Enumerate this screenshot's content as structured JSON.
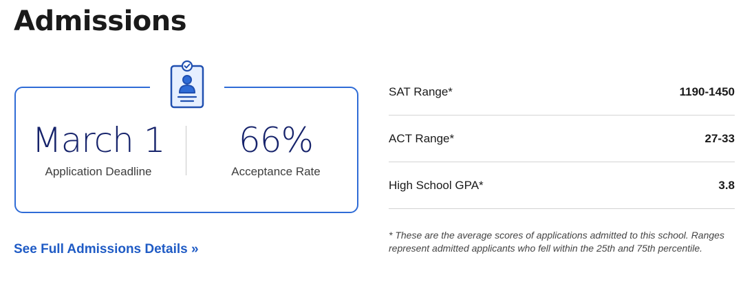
{
  "title": "Admissions",
  "stats": {
    "deadline_value": "March 1",
    "deadline_label": "Application Deadline",
    "acceptance_value": "66%",
    "acceptance_label": "Acceptance Rate"
  },
  "details_link": "See Full Admissions Details »",
  "scores": [
    {
      "label": "SAT Range*",
      "value": "1190-1450"
    },
    {
      "label": "ACT Range*",
      "value": "27-33"
    },
    {
      "label": "High School GPA*",
      "value": "3.8"
    }
  ],
  "footnote": "* These are the average scores of applications admitted to this school. Ranges represent admitted applicants who fell within the 25th and 75th percentile.",
  "colors": {
    "accent": "#2e6bd6",
    "stat_text": "#16236b",
    "link": "#1f5bc5"
  },
  "icons": {
    "card_icon": "id-badge-icon"
  }
}
